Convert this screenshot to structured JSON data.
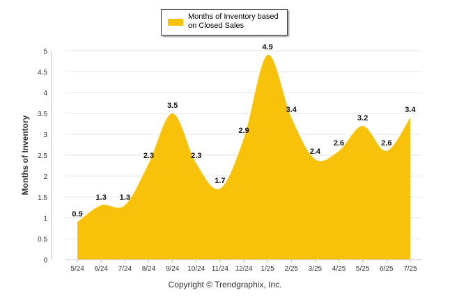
{
  "chart_data": {
    "type": "area",
    "categories": [
      "5/24",
      "6/24",
      "7/24",
      "8/24",
      "9/24",
      "10/24",
      "11/24",
      "12/24",
      "1/25",
      "2/25",
      "3/25",
      "4/25",
      "5/25",
      "6/25",
      "7/25"
    ],
    "series": [
      {
        "name": "Months of Inventory based on Closed Sales",
        "values": [
          0.9,
          1.3,
          1.3,
          2.3,
          3.5,
          2.3,
          1.7,
          2.9,
          4.9,
          3.4,
          2.4,
          2.6,
          3.2,
          2.6,
          3.4
        ],
        "labels": [
          "0.9",
          "1.3",
          "1.3",
          "2.3",
          "3.5",
          "2.3",
          "1.7",
          "2.9",
          "4.9",
          "3.4",
          "2.4",
          "2.6",
          "3.2",
          "2.6",
          "3.4"
        ]
      }
    ],
    "ylabel": "Months of Inventory",
    "ylim": [
      0,
      5
    ],
    "yticks": [
      0,
      0.5,
      1,
      1.5,
      2,
      2.5,
      3,
      3.5,
      4,
      4.5,
      5
    ],
    "ytick_labels": [
      "0",
      "0.5",
      "1",
      "1.5",
      "2",
      "2.5",
      "3",
      "3.5",
      "4",
      "4.5",
      "5"
    ],
    "grid": true,
    "legend_position": "top-center",
    "color": "#f8c20a"
  },
  "legend": {
    "label_line1": "Months of Inventory based",
    "label_line2": "on Closed Sales"
  },
  "footer": {
    "copyright": "Copyright © Trendgraphix, Inc."
  }
}
